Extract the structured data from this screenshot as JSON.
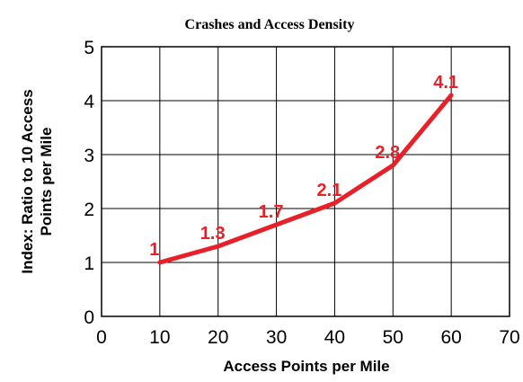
{
  "chart_data": {
    "type": "line",
    "title": "Crashes and Access Density",
    "xlabel": "Access Points per Mile",
    "ylabel_lines": [
      "Index: Ratio to 10 Access",
      "Points per Mile"
    ],
    "xlim": [
      0,
      70
    ],
    "ylim": [
      0,
      5
    ],
    "x_ticks": [
      "0",
      "10",
      "20",
      "30",
      "40",
      "50",
      "60",
      "70"
    ],
    "y_ticks": [
      "0",
      "1",
      "2",
      "3",
      "4",
      "5"
    ],
    "grid": true,
    "legend": "none",
    "series": [
      {
        "color": "#e8202a",
        "points": [
          {
            "x": 10,
            "y": 1,
            "label": "1"
          },
          {
            "x": 20,
            "y": 1.3,
            "label": "1.3"
          },
          {
            "x": 30,
            "y": 1.7,
            "label": "1.7"
          },
          {
            "x": 40,
            "y": 2.1,
            "label": "2.1"
          },
          {
            "x": 50,
            "y": 2.8,
            "label": "2.8"
          },
          {
            "x": 60,
            "y": 4.1,
            "label": "4.1"
          }
        ]
      }
    ]
  }
}
